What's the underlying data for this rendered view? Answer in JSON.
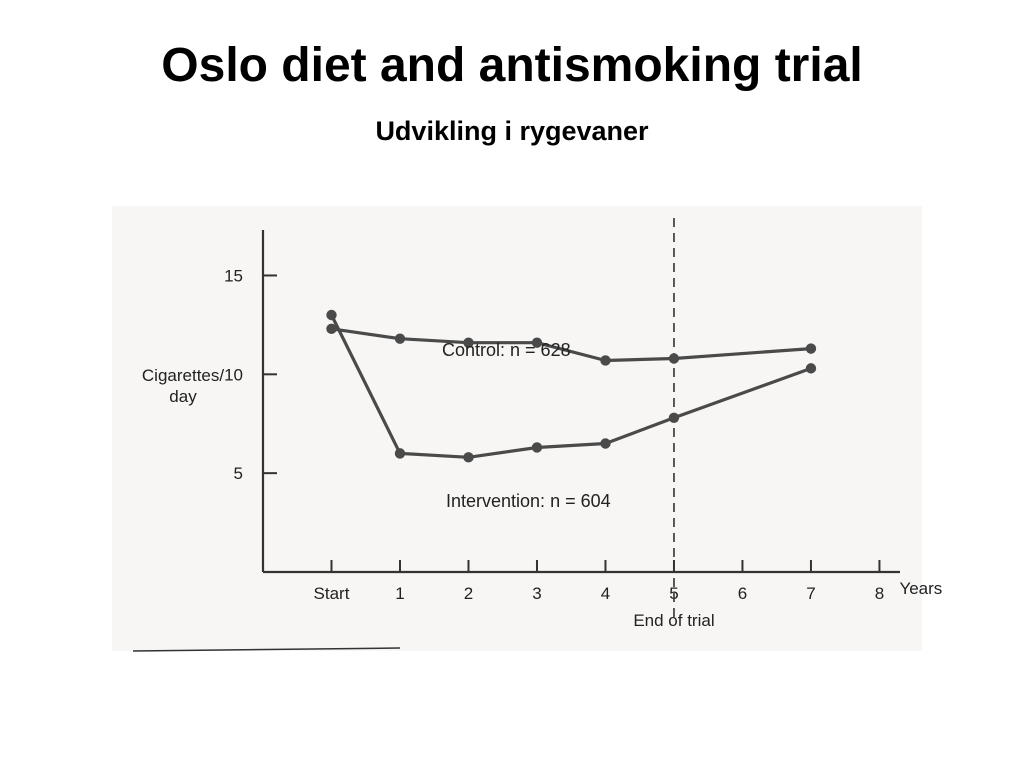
{
  "slide": {
    "title": "Oslo diet and antismoking trial",
    "subtitle": "Udvikling i rygevaner"
  },
  "colors": {
    "line": "#4a4a4a",
    "axis": "#333333",
    "scan_background": "#f7f6f4"
  },
  "chart_data": {
    "type": "line",
    "x_tick_labels": [
      "Start",
      "1",
      "2",
      "3",
      "4",
      "5",
      "6",
      "7",
      "8"
    ],
    "x_unit_label": "Years",
    "x_annotation": "End of trial",
    "ylabel_line1": "Cigarettes/",
    "ylabel_line2": "day",
    "y_ticks": [
      5,
      10,
      15
    ],
    "ylim": [
      0,
      17.3
    ],
    "xlim": [
      -1,
      8.3
    ],
    "vertical_marker_x": 5,
    "series": [
      {
        "name": "Control",
        "label_text": "Control:  n = 628",
        "points": [
          [
            0,
            12.3
          ],
          [
            1,
            11.8
          ],
          [
            2,
            11.6
          ],
          [
            3,
            11.6
          ],
          [
            4,
            10.7
          ],
          [
            5,
            10.8
          ],
          [
            7,
            11.3
          ]
        ]
      },
      {
        "name": "Intervention",
        "label_text": "Intervention:  n = 604",
        "points": [
          [
            0,
            13.0
          ],
          [
            1,
            6.0
          ],
          [
            2,
            5.8
          ],
          [
            3,
            6.3
          ],
          [
            4,
            6.5
          ],
          [
            5,
            7.8
          ],
          [
            7,
            10.3
          ]
        ]
      }
    ]
  }
}
